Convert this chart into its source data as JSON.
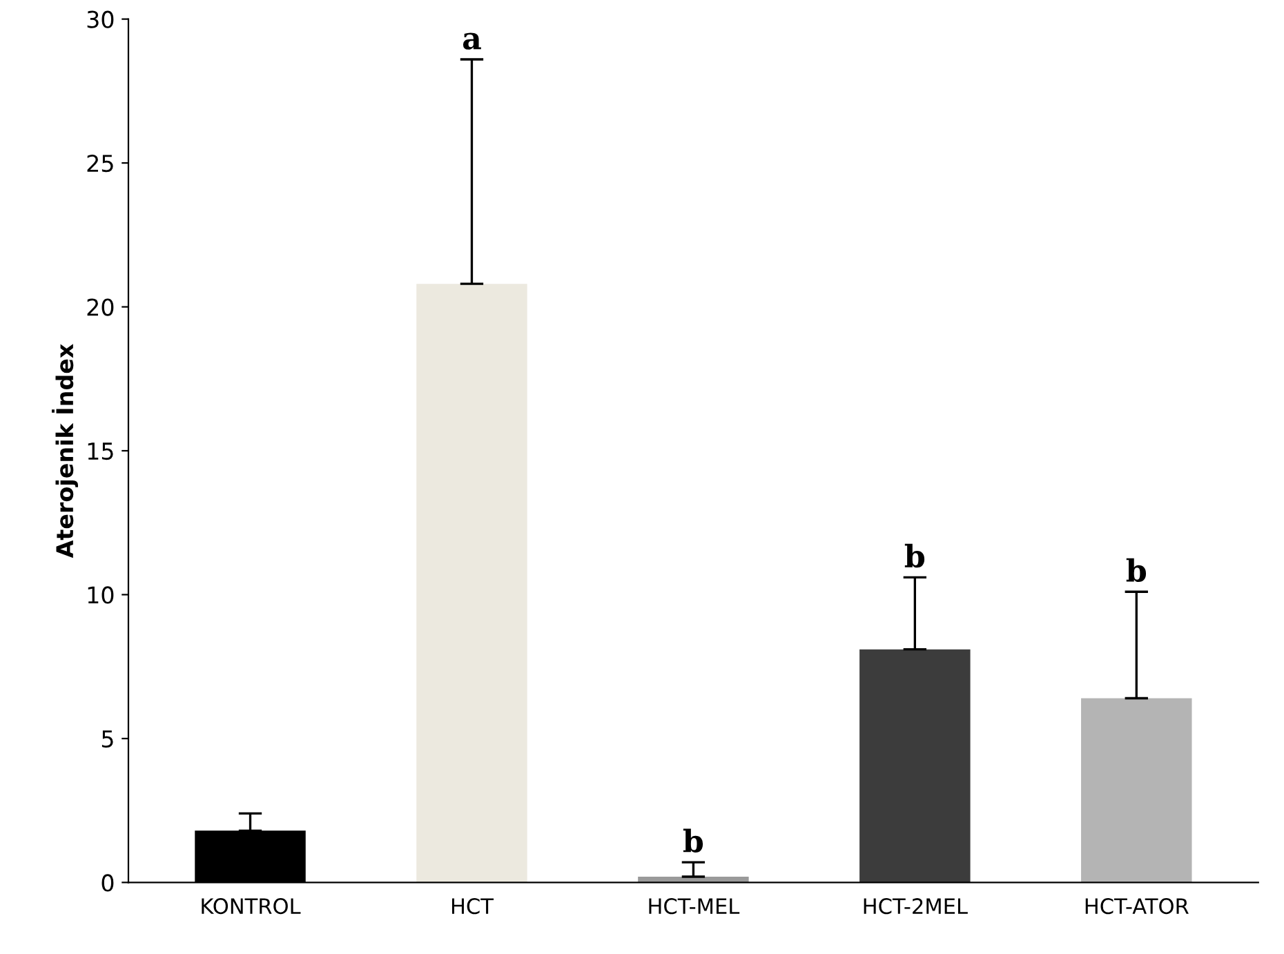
{
  "chart_data": {
    "type": "bar",
    "ylabel": "Aterojenik İndex",
    "categories": [
      "KONTROL",
      "HCT",
      "HCT-MEL",
      "HCT-2MEL",
      "HCT-ATOR"
    ],
    "values": [
      1.8,
      20.8,
      0.2,
      8.1,
      6.4
    ],
    "errors": [
      [
        1.8,
        2.4
      ],
      [
        20.8,
        28.6
      ],
      [
        0.2,
        0.7
      ],
      [
        8.1,
        10.6
      ],
      [
        6.4,
        10.1
      ]
    ],
    "colors": [
      "#000000",
      "#ece9df",
      "#9a9a9a",
      "#3c3c3c",
      "#b4b4b4"
    ],
    "ylim": [
      0,
      30
    ],
    "yticks": [
      0,
      5,
      10,
      15,
      20,
      25,
      30
    ],
    "grid": false,
    "legend": false,
    "annotations": [
      "a",
      "b",
      "b",
      "b"
    ]
  }
}
